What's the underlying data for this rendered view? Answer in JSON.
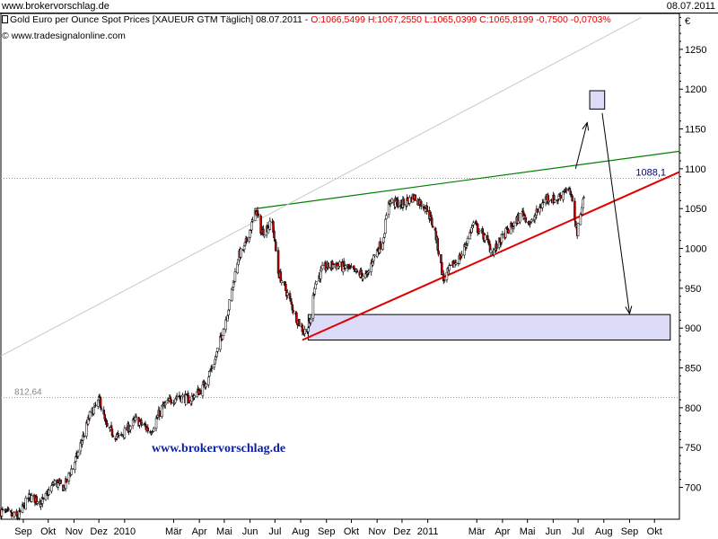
{
  "site_title": "www.brokervorschlag.de",
  "date_label": "08.07.2011",
  "header": {
    "name": "Gold Euro per Ounce Spot Prices [XAUEUR GTM  Täglich] 08.07.2011 - ",
    "ohlc": "O:1066,5499 H:1067,2550 L:1065,0399 C:1065,8199 -0,7500 -0,0703%"
  },
  "source": "© www.tradesignalonline.com",
  "watermark": "www.brokervorschlag.de",
  "colors": {
    "candle_up": "#ffffff",
    "candle_down": "#c00000",
    "support_line": "#e00000",
    "resistance_line": "#008000",
    "target_box_fill": "#dcdcf8",
    "level_label": "#00007f"
  },
  "chart_data": {
    "type": "candlestick",
    "currency_label": "€",
    "y_ticks": [
      700,
      750,
      800,
      850,
      900,
      950,
      1000,
      1050,
      1100,
      1150,
      1200,
      1250
    ],
    "y_tick_labels": [
      "700",
      "750",
      "800",
      "850",
      "900",
      "950",
      "1000",
      "1050",
      "1100",
      "1150",
      "1200",
      "1250"
    ],
    "ylim": [
      660,
      1295
    ],
    "x_tick_labels": [
      "Sep",
      "Okt",
      "Nov",
      "Dez",
      "2010",
      "Mär",
      "Apr",
      "Mai",
      "Jun",
      "Jul",
      "Aug",
      "Sep",
      "Okt",
      "Nov",
      "Dez",
      "2011",
      "Mär",
      "Apr",
      "Mai",
      "Jun",
      "Jul",
      "Aug",
      "Sep",
      "Okt"
    ],
    "x_tick_dates": [
      "2009-09-01",
      "2009-10-01",
      "2009-11-01",
      "2009-12-01",
      "2010-01-01",
      "2010-03-01",
      "2010-04-01",
      "2010-05-01",
      "2010-06-01",
      "2010-07-01",
      "2010-08-01",
      "2010-09-01",
      "2010-10-01",
      "2010-11-01",
      "2010-12-01",
      "2011-01-01",
      "2011-03-01",
      "2011-04-01",
      "2011-05-01",
      "2011-06-01",
      "2011-07-01",
      "2011-08-01",
      "2011-09-01",
      "2011-10-01"
    ],
    "xlim": [
      "2009-08-05",
      "2011-10-31"
    ],
    "price_path": [
      {
        "date": "2009-08-05",
        "close": 670
      },
      {
        "date": "2009-08-25",
        "close": 662
      },
      {
        "date": "2009-09-08",
        "close": 688
      },
      {
        "date": "2009-09-25",
        "close": 682
      },
      {
        "date": "2009-10-08",
        "close": 706
      },
      {
        "date": "2009-10-20",
        "close": 700
      },
      {
        "date": "2009-11-05",
        "close": 740
      },
      {
        "date": "2009-11-20",
        "close": 790
      },
      {
        "date": "2009-12-02",
        "close": 810
      },
      {
        "date": "2009-12-10",
        "close": 775
      },
      {
        "date": "2009-12-25",
        "close": 762
      },
      {
        "date": "2010-01-15",
        "close": 785
      },
      {
        "date": "2010-02-01",
        "close": 770
      },
      {
        "date": "2010-02-15",
        "close": 800
      },
      {
        "date": "2010-03-05",
        "close": 815
      },
      {
        "date": "2010-03-20",
        "close": 810
      },
      {
        "date": "2010-04-05",
        "close": 825
      },
      {
        "date": "2010-04-20",
        "close": 860
      },
      {
        "date": "2010-05-05",
        "close": 920
      },
      {
        "date": "2010-05-18",
        "close": 990
      },
      {
        "date": "2010-05-25",
        "close": 1000
      },
      {
        "date": "2010-06-03",
        "close": 1030
      },
      {
        "date": "2010-06-08",
        "close": 1048
      },
      {
        "date": "2010-06-15",
        "close": 1020
      },
      {
        "date": "2010-06-28",
        "close": 1032
      },
      {
        "date": "2010-07-05",
        "close": 970
      },
      {
        "date": "2010-07-15",
        "close": 945
      },
      {
        "date": "2010-07-28",
        "close": 910
      },
      {
        "date": "2010-08-05",
        "close": 895
      },
      {
        "date": "2010-08-12",
        "close": 905
      },
      {
        "date": "2010-08-18",
        "close": 955
      },
      {
        "date": "2010-08-28",
        "close": 975
      },
      {
        "date": "2010-09-10",
        "close": 980
      },
      {
        "date": "2010-09-25",
        "close": 975
      },
      {
        "date": "2010-10-10",
        "close": 968
      },
      {
        "date": "2010-10-20",
        "close": 965
      },
      {
        "date": "2010-10-28",
        "close": 990
      },
      {
        "date": "2010-11-08",
        "close": 1010
      },
      {
        "date": "2010-11-15",
        "close": 1060
      },
      {
        "date": "2010-12-01",
        "close": 1055
      },
      {
        "date": "2010-12-15",
        "close": 1065
      },
      {
        "date": "2010-12-31",
        "close": 1050
      },
      {
        "date": "2011-01-10",
        "close": 1020
      },
      {
        "date": "2011-01-20",
        "close": 960
      },
      {
        "date": "2011-01-28",
        "close": 975
      },
      {
        "date": "2011-02-10",
        "close": 990
      },
      {
        "date": "2011-02-25",
        "close": 1030
      },
      {
        "date": "2011-03-10",
        "close": 1015
      },
      {
        "date": "2011-03-20",
        "close": 995
      },
      {
        "date": "2011-04-05",
        "close": 1020
      },
      {
        "date": "2011-04-15",
        "close": 1030
      },
      {
        "date": "2011-04-25",
        "close": 1045
      },
      {
        "date": "2011-05-05",
        "close": 1030
      },
      {
        "date": "2011-05-15",
        "close": 1050
      },
      {
        "date": "2011-05-25",
        "close": 1065
      },
      {
        "date": "2011-06-05",
        "close": 1060
      },
      {
        "date": "2011-06-15",
        "close": 1075
      },
      {
        "date": "2011-06-22",
        "close": 1068
      },
      {
        "date": "2011-06-30",
        "close": 1020
      },
      {
        "date": "2011-07-08",
        "close": 1066
      }
    ],
    "reference_levels": [
      {
        "value": 1088.1,
        "label": "1088,1"
      },
      {
        "value": 812.64,
        "label": "812,64"
      }
    ],
    "trendlines": [
      {
        "name": "resistance",
        "from": {
          "date": "2010-06-08",
          "value": 1050
        },
        "to": {
          "date": "2011-10-31",
          "value": 1122
        }
      },
      {
        "name": "support",
        "from": {
          "date": "2010-08-03",
          "value": 885
        },
        "to": {
          "date": "2011-10-31",
          "value": 1096
        }
      },
      {
        "name": "long-term",
        "from": {
          "date": "2009-08-05",
          "value": 865
        },
        "to": {
          "date": "2011-09-15",
          "value": 1290
        }
      }
    ],
    "zones": [
      {
        "name": "upper-target",
        "from_date": "2011-07-15",
        "to_date": "2011-08-02",
        "low": 1175,
        "high": 1198
      },
      {
        "name": "lower-target",
        "from_date": "2010-08-10",
        "to_date": "2011-10-20",
        "low": 885,
        "high": 917
      }
    ],
    "arrows": [
      {
        "name": "up-arrow",
        "from": {
          "date": "2011-06-28",
          "value": 1100
        },
        "to": {
          "date": "2011-07-12",
          "value": 1158
        }
      },
      {
        "name": "down-arrow",
        "from": {
          "date": "2011-07-30",
          "value": 1170
        },
        "to": {
          "date": "2011-09-01",
          "value": 918
        }
      }
    ]
  }
}
